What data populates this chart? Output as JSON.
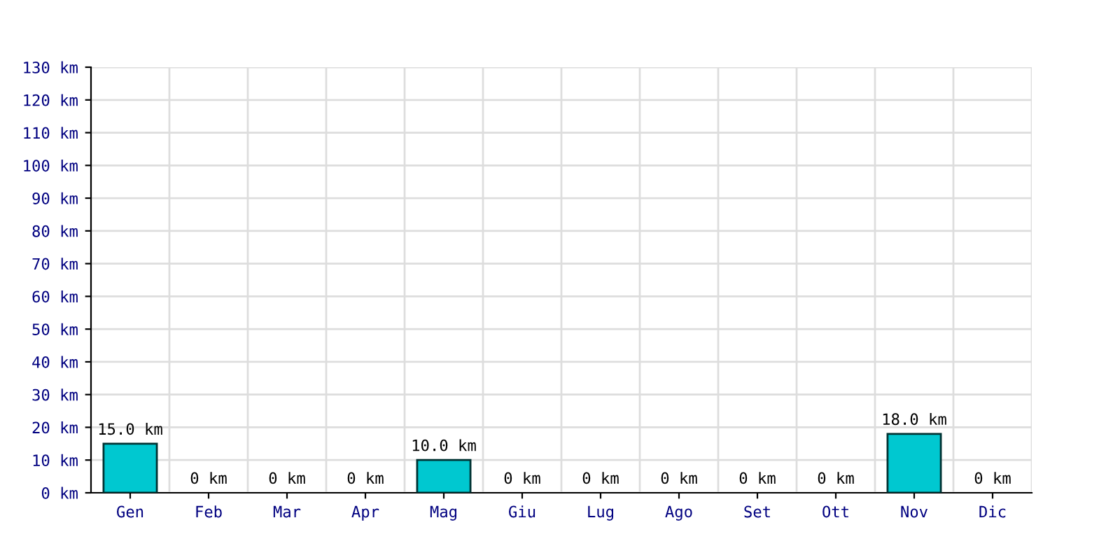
{
  "chart_data": {
    "type": "bar",
    "categories": [
      "Gen",
      "Feb",
      "Mar",
      "Apr",
      "Mag",
      "Giu",
      "Lug",
      "Ago",
      "Set",
      "Ott",
      "Nov",
      "Dic"
    ],
    "values": [
      15,
      0,
      0,
      0,
      10,
      0,
      0,
      0,
      0,
      0,
      18,
      0
    ],
    "value_labels": [
      "15.0 km",
      "0 km",
      "0 km",
      "0 km",
      "10.0 km",
      "0 km",
      "0 km",
      "0 km",
      "0 km",
      "0 km",
      "18.0 km",
      "0 km"
    ],
    "color": "#00c8d0",
    "ylim": [
      0,
      130
    ],
    "yticks": [
      {
        "value": 0,
        "label": "0 km"
      },
      {
        "value": 10,
        "label": "10 km"
      },
      {
        "value": 20,
        "label": "20 km"
      },
      {
        "value": 30,
        "label": "30 km"
      },
      {
        "value": 40,
        "label": "40 km"
      },
      {
        "value": 50,
        "label": "50 km"
      },
      {
        "value": 60,
        "label": "60 km"
      },
      {
        "value": 70,
        "label": "70 km"
      },
      {
        "value": 80,
        "label": "80 km"
      },
      {
        "value": 90,
        "label": "90 km"
      },
      {
        "value": 100,
        "label": "100 km"
      },
      {
        "value": 110,
        "label": "110 km"
      },
      {
        "value": 120,
        "label": "120 km"
      },
      {
        "value": 130,
        "label": "130 km"
      }
    ],
    "grid": true
  }
}
